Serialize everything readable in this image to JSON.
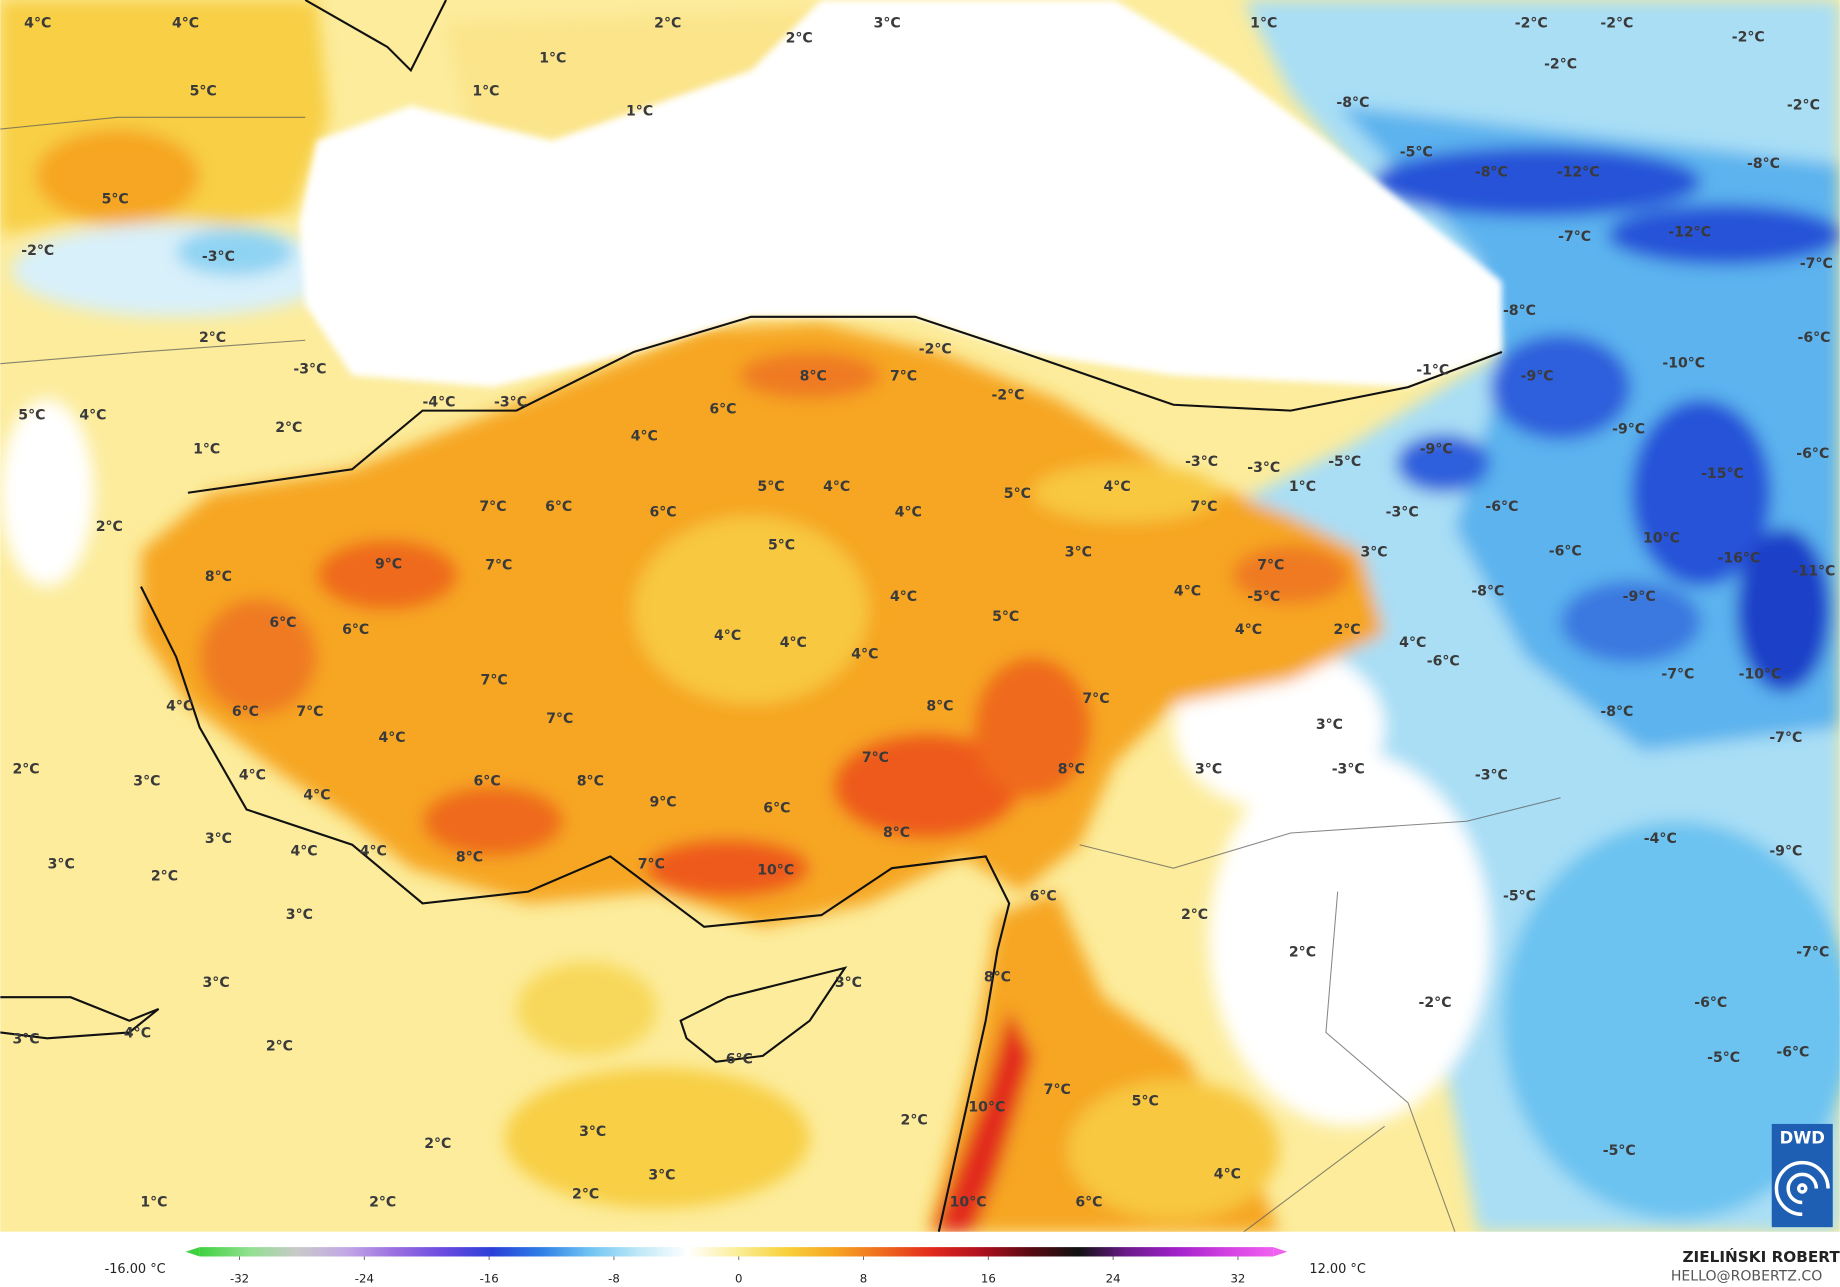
{
  "map": {
    "labels": [
      "4°C",
      "4°C",
      "2°C",
      "1°C",
      "2°C",
      "3°C",
      "1°C",
      "-2°C",
      "-2°C",
      "-2°C",
      "-2°C",
      "-2°C",
      "1°C",
      "1°C",
      "5°C",
      "-8°C",
      "-5°C",
      "-8°C",
      "-12°C",
      "-8°C",
      "5°C",
      "-2°C",
      "-3°C",
      "-7°C",
      "-12°C",
      "-7°C",
      "-8°C",
      "2°C",
      "-3°C",
      "-2°C",
      "-6°C",
      "8°C",
      "7°C",
      "-1°C",
      "-9°C",
      "-10°C",
      "-4°C",
      "-3°C",
      "-2°C",
      "6°C",
      "5°C",
      "4°C",
      "2°C",
      "4°C",
      "-9°C",
      "1°C",
      "-9°C",
      "-5°C",
      "-3°C",
      "-3°C",
      "-6°C",
      "5°C",
      "4°C",
      "5°C",
      "4°C",
      "1°C",
      "-15°C",
      "7°C",
      "-3°C",
      "-6°C",
      "7°C",
      "6°C",
      "6°C",
      "4°C",
      "2°C",
      "5°C",
      "3°C",
      "3°C",
      "-6°C",
      "10°C",
      "-16°C",
      "-11°C",
      "9°C",
      "7°C",
      "7°C",
      "8°C",
      "4°C",
      "-8°C",
      "-9°C",
      "-5°C",
      "4°C",
      "5°C",
      "6°C",
      "6°C",
      "4°C",
      "2°C",
      "4°C",
      "4°C",
      "4°C",
      "4°C",
      "-6°C",
      "-7°C",
      "-10°C",
      "7°C",
      "7°C",
      "8°C",
      "4°C",
      "6°C",
      "7°C",
      "7°C",
      "-8°C",
      "3°C",
      "-7°C",
      "4°C",
      "7°C",
      "8°C",
      "3°C",
      "-3°C",
      "-3°C",
      "2°C",
      "3°C",
      "4°C",
      "6°C",
      "8°C",
      "4°C",
      "9°C",
      "6°C",
      "3°C",
      "4°C",
      "4°C",
      "8°C",
      "-4°C",
      "-9°C",
      "8°C",
      "7°C",
      "10°C",
      "3°C",
      "2°C",
      "6°C",
      "-5°C",
      "3°C",
      "2°C",
      "2°C",
      "-7°C",
      "8°C",
      "3°C",
      "3°C",
      "-2°C",
      "-6°C",
      "3°C",
      "4°C",
      "2°C",
      "6°C",
      "-5°C",
      "-6°C",
      "7°C",
      "10°C",
      "5°C",
      "2°C",
      "3°C",
      "2°C",
      "-5°C",
      "3°C",
      "4°C",
      "2°C",
      "1°C",
      "2°C",
      "10°C",
      "6°C"
    ]
  },
  "colorbar": {
    "min_label": "-16.00 °C",
    "max_label": "12.00 °C",
    "ticks": [
      -32,
      -24,
      -16,
      -8,
      0,
      8,
      16,
      24,
      32
    ],
    "colors": [
      "#3fd13f",
      "#8fe08f",
      "#c9c9c9",
      "#c2a8e6",
      "#9a6fe0",
      "#6b4be0",
      "#2a3fd8",
      "#2f7fe6",
      "#6fc4f2",
      "#bfe8f7",
      "#ffffff",
      "#fbee9a",
      "#f8d23c",
      "#f6a623",
      "#ef6b1f",
      "#e22a1e",
      "#b0101e",
      "#5a0a12",
      "#111111",
      "#6a1a8a",
      "#a020c8",
      "#d040e0",
      "#f060f0"
    ]
  },
  "credit": {
    "name": "ZIELIŃSKI ROBERT",
    "contact": "HELLO@ROBERTZ.CO"
  },
  "logo": {
    "text": "DWD"
  }
}
